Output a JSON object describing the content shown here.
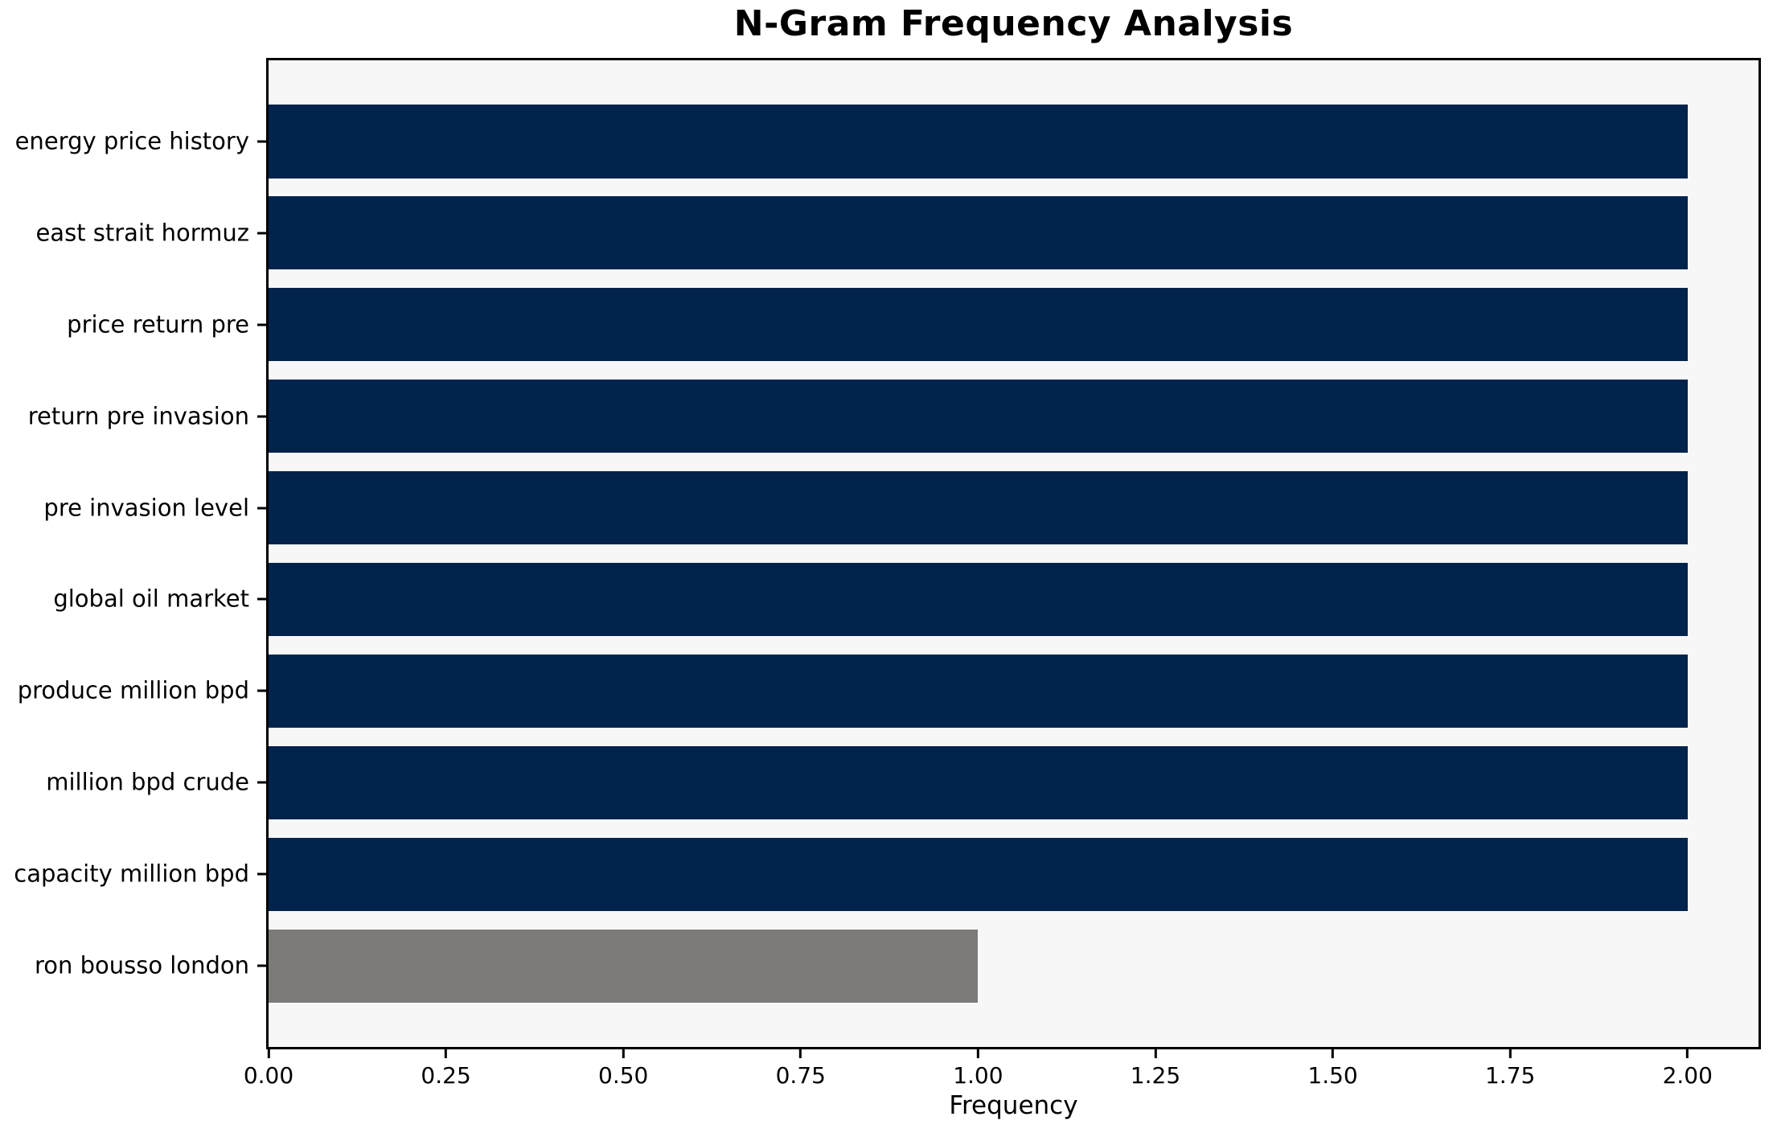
{
  "chart_data": {
    "type": "bar",
    "orientation": "horizontal",
    "title": "N-Gram Frequency Analysis",
    "xlabel": "Frequency",
    "ylabel": "",
    "categories": [
      "energy price history",
      "east strait hormuz",
      "price return pre",
      "return pre invasion",
      "pre invasion level",
      "global oil market",
      "produce million bpd",
      "million bpd crude",
      "capacity million bpd",
      "ron bousso london"
    ],
    "values": [
      2,
      2,
      2,
      2,
      2,
      2,
      2,
      2,
      2,
      1
    ],
    "bar_colors": [
      "#02234c",
      "#02234c",
      "#02234c",
      "#02234c",
      "#02234c",
      "#02234c",
      "#02234c",
      "#02234c",
      "#02234c",
      "#7c7b78"
    ],
    "xlim": [
      0,
      2.1
    ],
    "x_ticks": [
      0,
      0.25,
      0.5,
      0.75,
      1.0,
      1.25,
      1.5,
      1.75,
      2.0
    ],
    "x_tick_labels": [
      "0.00",
      "0.25",
      "0.50",
      "0.75",
      "1.00",
      "1.25",
      "1.50",
      "1.75",
      "2.00"
    ],
    "bar_height_fraction": 0.8,
    "grid": false,
    "legend": null,
    "colors": {
      "plot_background": "#f7f7f7",
      "figure_background": "#ffffff",
      "spine": "#000000",
      "text": "#000000"
    }
  }
}
